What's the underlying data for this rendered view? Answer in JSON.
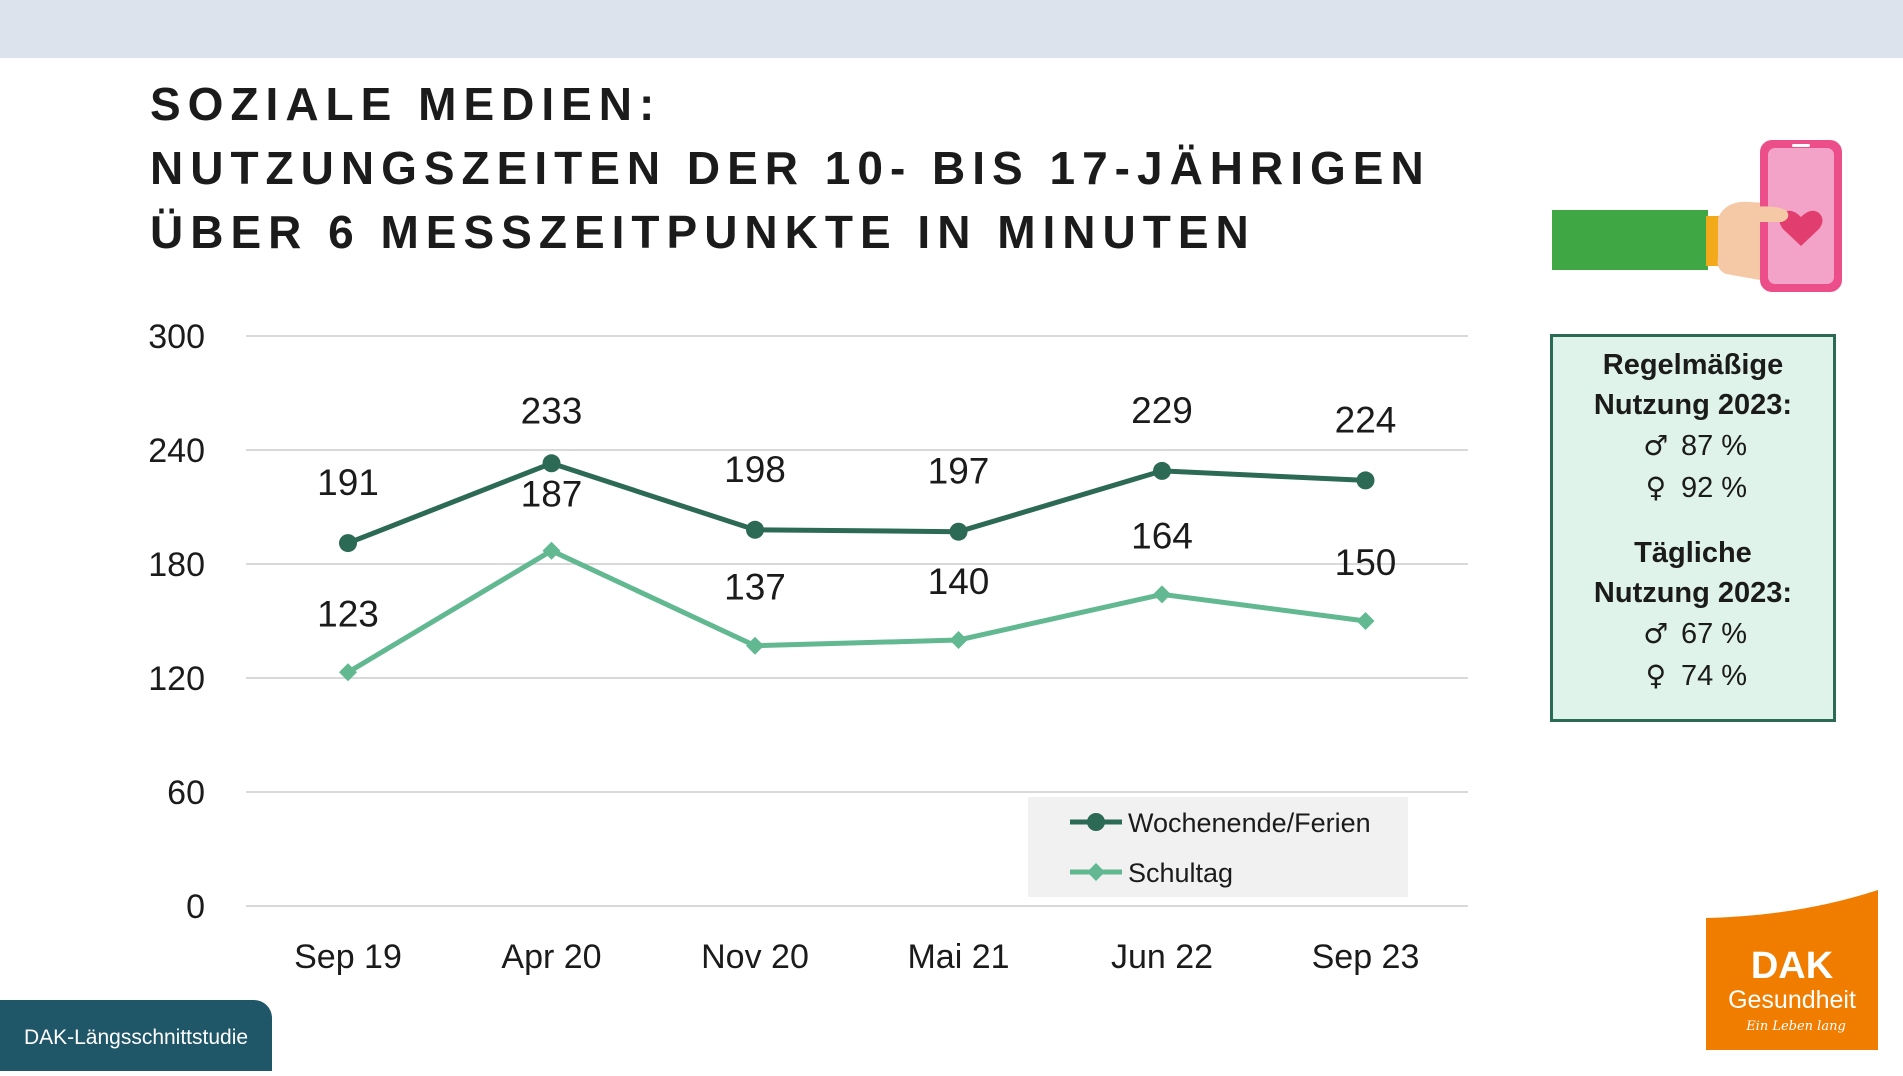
{
  "title": {
    "line1": "SOZIALE MEDIEN:",
    "line2": "NUTZUNGSZEITEN DER 10- BIS 17-JÄHRIGEN",
    "line3": "ÜBER 6 MESSZEITPUNKTE IN MINUTEN"
  },
  "chart_data": {
    "type": "line",
    "x": [
      "Sep 19",
      "Apr 20",
      "Nov 20",
      "Mai 21",
      "Jun 22",
      "Sep 23"
    ],
    "y_ticks": [
      0,
      60,
      120,
      180,
      240,
      300
    ],
    "ylim": [
      0,
      300
    ],
    "grid": true,
    "legend_position": "bottom-right",
    "series": [
      {
        "name": "Wochenende/Ferien",
        "values": [
          191,
          233,
          198,
          197,
          229,
          224
        ],
        "color": "#2d6a55",
        "marker": "circle"
      },
      {
        "name": "Schultag",
        "values": [
          123,
          187,
          137,
          140,
          164,
          150
        ],
        "color": "#62b891",
        "marker": "diamond"
      }
    ]
  },
  "info_box": {
    "regular_heading_1": "Regelmäßige",
    "regular_heading_2": "Nutzung 2023:",
    "regular_male": "87 %",
    "regular_female": "92 %",
    "daily_heading_1": "Tägliche",
    "daily_heading_2": "Nutzung 2023:",
    "daily_male": "67 %",
    "daily_female": "74 %",
    "male_symbol": "♂",
    "female_symbol": "♀"
  },
  "footer": {
    "label": "DAK-Längsschnittstudie"
  },
  "logo": {
    "name": "DAK",
    "line2": "Gesundheit",
    "tagline": "Ein Leben lang"
  },
  "colors": {
    "accent_orange": "#f07d00",
    "box_border": "#2b6b55",
    "box_bg": "#dff3ea",
    "footer_bg": "#1f5668",
    "topbar": "#dde3ec"
  },
  "icons": {
    "illustration": "hand-holding-phone-heart-icon"
  }
}
